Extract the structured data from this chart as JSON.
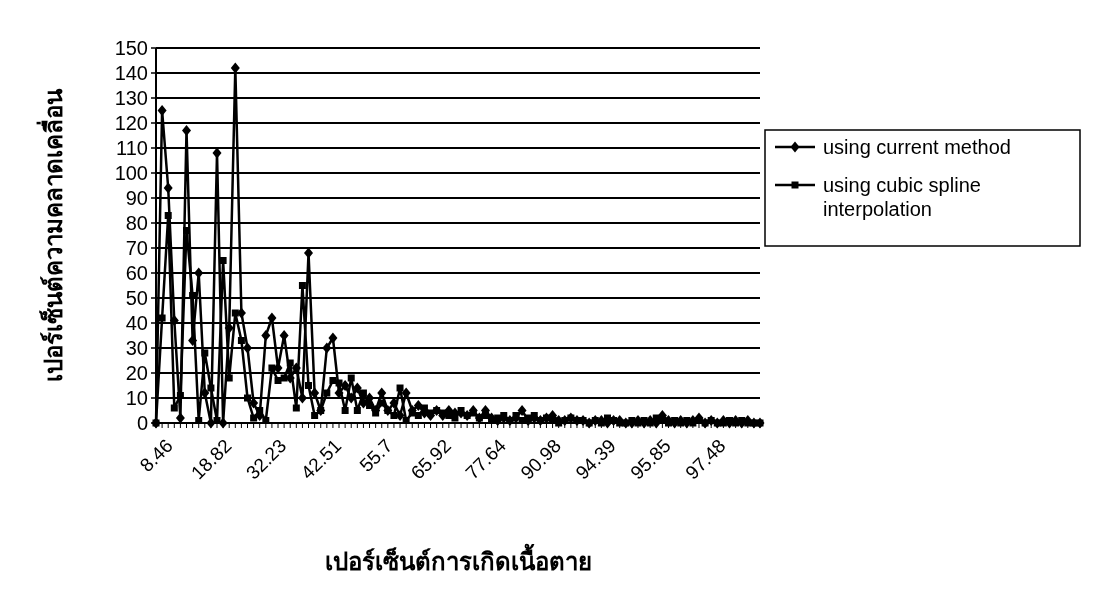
{
  "chart_data": {
    "type": "line",
    "xlabel": "เปอร์เซ็นต์การเกิดเนื้อตาย",
    "ylabel": "เปอร์เซ็นต์ความคลาดเคลื่อน",
    "categories": [
      "8.46",
      null,
      null,
      null,
      null,
      null,
      null,
      null,
      null,
      "18.82",
      null,
      null,
      null,
      null,
      null,
      null,
      null,
      null,
      "32.23",
      null,
      null,
      null,
      null,
      null,
      null,
      null,
      null,
      "42.51",
      null,
      null,
      null,
      null,
      null,
      null,
      null,
      null,
      "55.7",
      null,
      null,
      null,
      null,
      null,
      null,
      null,
      null,
      "65.92",
      null,
      null,
      null,
      null,
      null,
      null,
      null,
      null,
      "77.64",
      null,
      null,
      null,
      null,
      null,
      null,
      null,
      null,
      "90.98",
      null,
      null,
      null,
      null,
      null,
      null,
      null,
      null,
      "94.39",
      null,
      null,
      null,
      null,
      null,
      null,
      null,
      null,
      "95.85",
      null,
      null,
      null,
      null,
      null,
      null,
      null,
      null,
      "97.48",
      null,
      null,
      null,
      null,
      null,
      null,
      null,
      null,
      null
    ],
    "series": [
      {
        "name": "using current method",
        "color": "#000000",
        "marker": "diamond",
        "values": [
          0,
          125,
          94,
          41,
          2,
          117,
          33,
          60,
          12,
          0,
          108,
          0,
          38,
          142,
          44,
          30,
          8,
          3,
          35,
          42,
          22,
          35,
          18,
          22,
          10,
          68,
          12,
          5,
          30,
          34,
          12,
          15,
          10,
          14,
          8,
          10,
          5,
          12,
          5,
          8,
          3,
          12,
          5,
          7,
          4,
          3,
          5,
          3,
          5,
          4,
          4,
          3,
          5,
          2,
          5,
          2,
          1,
          2,
          1,
          2,
          5,
          1,
          2,
          1,
          2,
          3,
          1,
          1,
          2,
          1,
          1,
          0,
          1,
          1,
          0,
          1,
          1,
          0,
          0,
          1,
          0,
          1,
          0,
          3,
          1,
          0,
          1,
          0,
          1,
          2,
          0,
          1,
          0,
          1,
          0,
          1,
          0,
          1,
          0,
          0
        ]
      },
      {
        "name": "using cubic spline interpolation",
        "color": "#000000",
        "marker": "square",
        "values": [
          0,
          42,
          83,
          6,
          11,
          77,
          51,
          1,
          28,
          14,
          1,
          65,
          18,
          44,
          33,
          10,
          2,
          5,
          1,
          22,
          17,
          18,
          24,
          6,
          55,
          15,
          3,
          5,
          12,
          17,
          16,
          5,
          18,
          5,
          12,
          7,
          4,
          8,
          5,
          3,
          14,
          1,
          4,
          3,
          6,
          4,
          5,
          4,
          3,
          2,
          5,
          3,
          4,
          2,
          3,
          1,
          2,
          3,
          1,
          3,
          1,
          2,
          3,
          1,
          2,
          1,
          0,
          1,
          2,
          1,
          1,
          0,
          1,
          0,
          2,
          1,
          0,
          0,
          1,
          0,
          1,
          0,
          2,
          1,
          0,
          1,
          0,
          1,
          0,
          1,
          0,
          1,
          0,
          0,
          1,
          0,
          1,
          0,
          0,
          0
        ]
      }
    ],
    "ylim": [
      0,
      150
    ],
    "yticks": [
      0,
      10,
      20,
      30,
      40,
      50,
      60,
      70,
      80,
      90,
      100,
      110,
      120,
      130,
      140,
      150
    ],
    "grid": "y",
    "legend": "right"
  }
}
